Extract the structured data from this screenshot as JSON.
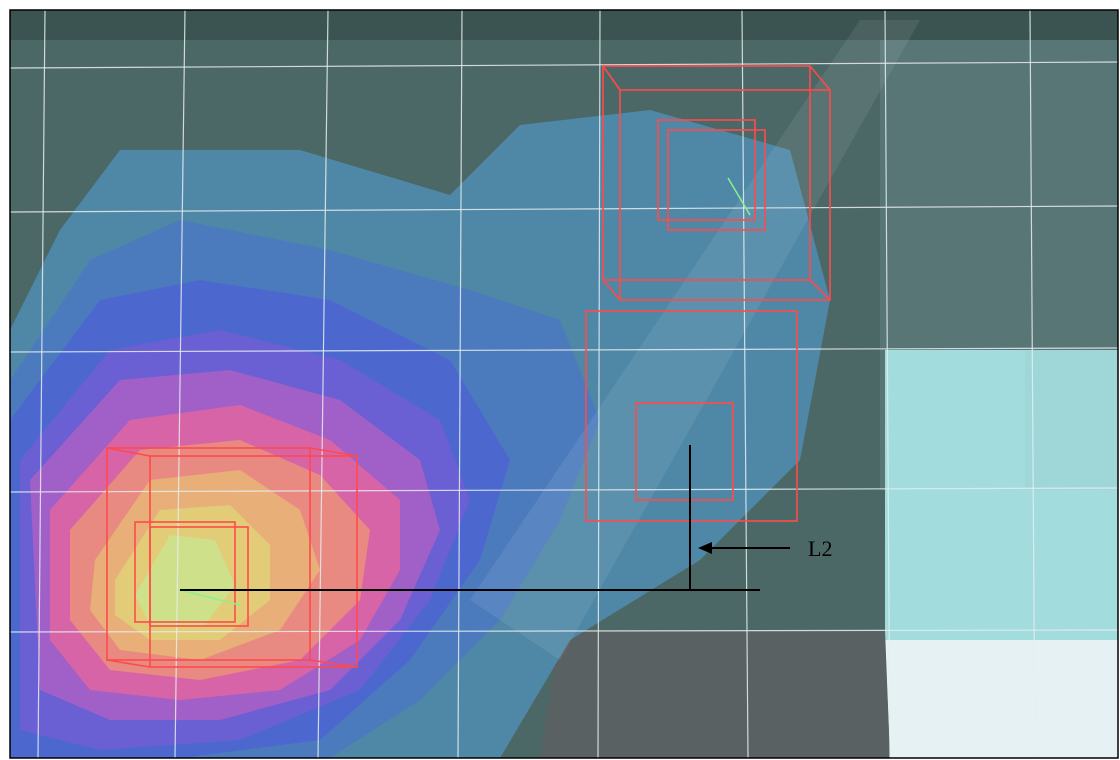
{
  "annotation": {
    "label": "L2"
  }
}
